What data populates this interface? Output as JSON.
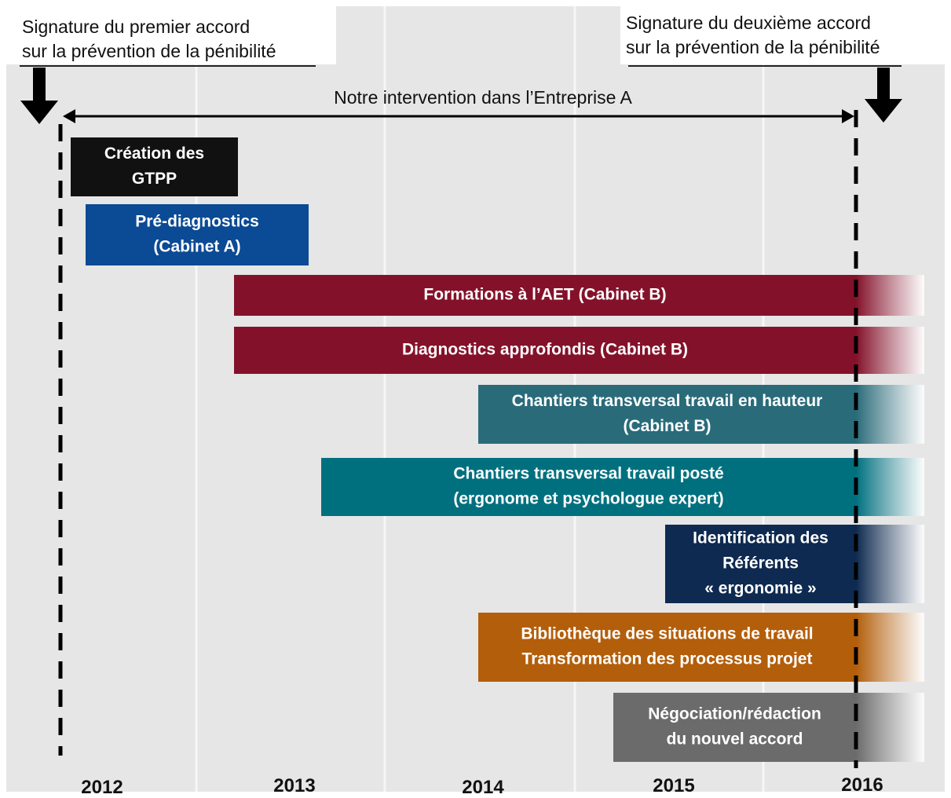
{
  "annotations": {
    "left": [
      "Signature du premier accord",
      "sur la prévention de la pénibilité"
    ],
    "right": [
      "Signature du deuxième accord",
      "sur la prévention de la pénibilité"
    ],
    "intervention": "Notre intervention dans l’Entreprise A"
  },
  "years": [
    "2012",
    "2013",
    "2014",
    "2015",
    "2016"
  ],
  "activities": [
    {
      "lines": [
        "Création des",
        "GTPP"
      ],
      "color": "#111111"
    },
    {
      "lines": [
        "Pré-diagnostics",
        "(Cabinet A)"
      ],
      "color": "#0b4a94"
    },
    {
      "lines": [
        "Formations à l’AET (Cabinet B)"
      ],
      "color": "#84112a"
    },
    {
      "lines": [
        "Diagnostics approfondis (Cabinet B)"
      ],
      "color": "#84112a"
    },
    {
      "lines": [
        "Chantiers transversal travail en hauteur",
        "(Cabinet B)"
      ],
      "color": "#2a6b7a"
    },
    {
      "lines": [
        "Chantiers transversal travail posté",
        "(ergonome et psychologue expert)"
      ],
      "color": "#00707f"
    },
    {
      "lines": [
        "Identification des",
        "Référents",
        "« ergonomie »"
      ],
      "color": "#0e2a50"
    },
    {
      "lines": [
        "Bibliothèque des situations de travail",
        "Transformation des processus projet"
      ],
      "color": "#b35e0a"
    },
    {
      "lines": [
        "Négociation/rédaction",
        "du nouvel accord"
      ],
      "color": "#6b6b6b"
    }
  ]
}
